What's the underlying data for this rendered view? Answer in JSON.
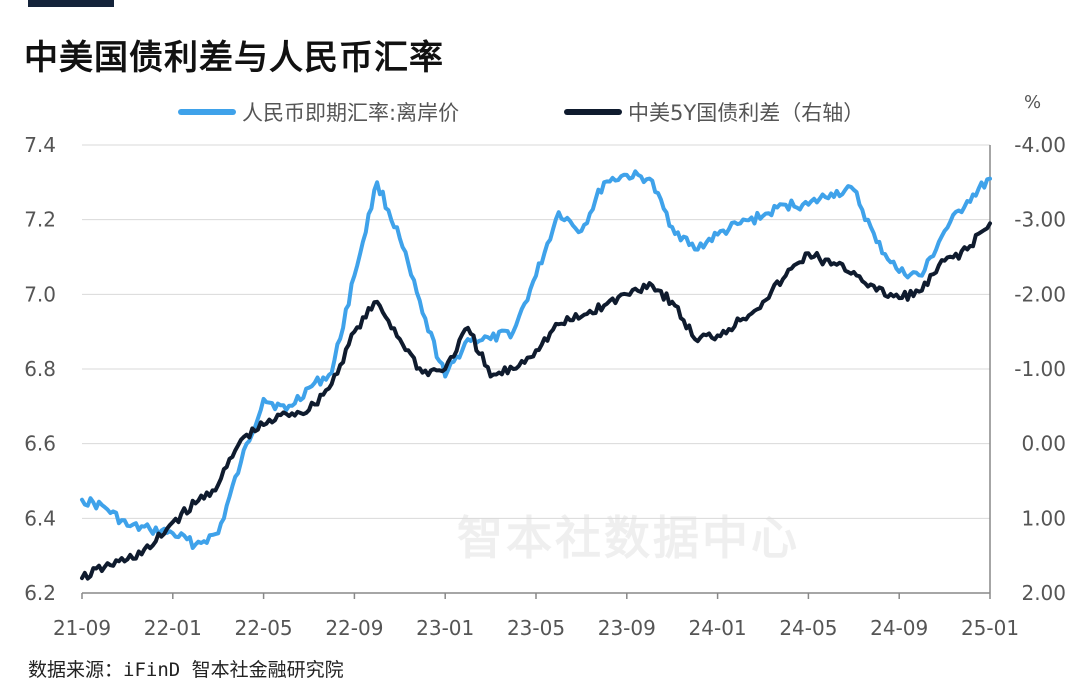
{
  "title": "中美国债利差与人民币汇率",
  "source": "数据来源：iFinD 智本社金融研究院",
  "watermark": "智本社数据中心",
  "unit_right": "%",
  "colors": {
    "cnh": "#3fa2ea",
    "spread": "#0f1b2e",
    "grid": "#d9d9d9",
    "title_bar": "#14233a"
  },
  "chart_data": {
    "type": "line",
    "title": "中美国债利差与人民币汇率",
    "legend": "top-center",
    "grid": true,
    "x_ticks": [
      "21-09",
      "22-01",
      "22-05",
      "22-09",
      "23-01",
      "23-05",
      "23-09",
      "24-01",
      "24-05",
      "24-09",
      "25-01"
    ],
    "x_range": [
      "2021-09",
      "2025-01"
    ],
    "y_left": {
      "range": [
        6.2,
        7.4
      ],
      "ticks": [
        "6.2",
        "6.4",
        "6.6",
        "6.8",
        "7.0",
        "7.2",
        "7.4"
      ]
    },
    "y_right": {
      "range": [
        2.0,
        -4.0
      ],
      "ticks": [
        "2.00",
        "1.00",
        "0.00",
        "-1.00",
        "-2.00",
        "-3.00",
        "-4.00"
      ],
      "inverted": true
    },
    "series": [
      {
        "name": "人民币即期汇率:离岸价",
        "axis": "left",
        "color": "#3fa2ea",
        "x": [
          "2021-09",
          "2021-10",
          "2021-11",
          "2021-12",
          "2022-01",
          "2022-02",
          "2022-03",
          "2022-04",
          "2022-05",
          "2022-06",
          "2022-07",
          "2022-08",
          "2022-09",
          "2022-10",
          "2022-11",
          "2022-12",
          "2023-01",
          "2023-02",
          "2023-03",
          "2023-04",
          "2023-05",
          "2023-06",
          "2023-07",
          "2023-08",
          "2023-09",
          "2023-10",
          "2023-11",
          "2023-12",
          "2024-01",
          "2024-02",
          "2024-03",
          "2024-04",
          "2024-05",
          "2024-06",
          "2024-07",
          "2024-08",
          "2024-09",
          "2024-10",
          "2024-11",
          "2024-12",
          "2025-01"
        ],
        "values": [
          6.45,
          6.43,
          6.38,
          6.37,
          6.36,
          6.33,
          6.36,
          6.55,
          6.72,
          6.69,
          6.75,
          6.79,
          7.05,
          7.3,
          7.15,
          6.95,
          6.78,
          6.88,
          6.88,
          6.9,
          7.05,
          7.22,
          7.17,
          7.3,
          7.32,
          7.31,
          7.18,
          7.12,
          7.16,
          7.19,
          7.21,
          7.24,
          7.24,
          7.27,
          7.28,
          7.14,
          7.06,
          7.05,
          7.17,
          7.25,
          7.31
        ]
      },
      {
        "name": "中美5Y国债利差（右轴）",
        "axis": "right",
        "color": "#0f1b2e",
        "x": [
          "2021-09",
          "2021-10",
          "2021-11",
          "2021-12",
          "2022-01",
          "2022-02",
          "2022-03",
          "2022-04",
          "2022-05",
          "2022-06",
          "2022-07",
          "2022-08",
          "2022-09",
          "2022-10",
          "2022-11",
          "2022-12",
          "2023-01",
          "2023-02",
          "2023-03",
          "2023-04",
          "2023-05",
          "2023-06",
          "2023-07",
          "2023-08",
          "2023-09",
          "2023-10",
          "2023-11",
          "2023-12",
          "2024-01",
          "2024-02",
          "2024-03",
          "2024-04",
          "2024-05",
          "2024-06",
          "2024-07",
          "2024-08",
          "2024-09",
          "2024-10",
          "2024-11",
          "2024-12",
          "2025-01"
        ],
        "values": [
          1.8,
          1.65,
          1.55,
          1.4,
          1.05,
          0.8,
          0.55,
          -0.05,
          -0.25,
          -0.4,
          -0.45,
          -0.8,
          -1.5,
          -1.9,
          -1.4,
          -0.95,
          -1.0,
          -1.55,
          -0.9,
          -1.0,
          -1.25,
          -1.6,
          -1.7,
          -1.85,
          -2.0,
          -2.15,
          -1.9,
          -1.4,
          -1.45,
          -1.65,
          -1.9,
          -2.25,
          -2.55,
          -2.4,
          -2.3,
          -2.05,
          -1.95,
          -2.05,
          -2.45,
          -2.6,
          -2.95
        ]
      }
    ]
  }
}
